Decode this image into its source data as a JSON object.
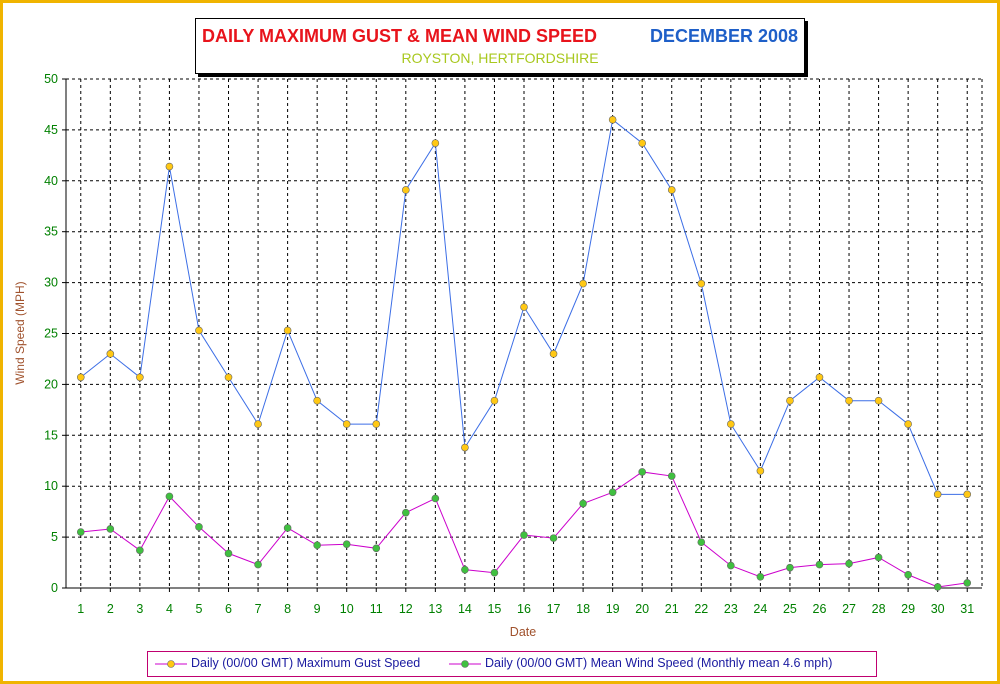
{
  "title": {
    "main": "DAILY MAXIMUM GUST & MEAN WIND SPEED",
    "date": "DECEMBER 2008",
    "subtitle": "ROYSTON, HERTFORDSHIRE"
  },
  "colors": {
    "title_main": "#e8141c",
    "title_date": "#1e5fc8",
    "subtitle": "#a8c81e",
    "axis_text": "#008000",
    "axis_label": "#a0522d",
    "gust_line": "#3c6ee6",
    "gust_marker": "#ffc814",
    "mean_line": "#cc00cc",
    "mean_marker": "#40c040",
    "frame": "#f0b400"
  },
  "chart_data": {
    "type": "line",
    "title": "DAILY MAXIMUM GUST & MEAN WIND SPEED",
    "xlabel": "Date",
    "ylabel": "Wind Speed (MPH)",
    "ylim": [
      0,
      50
    ],
    "yticks": [
      0,
      5,
      10,
      15,
      20,
      25,
      30,
      35,
      40,
      45,
      50
    ],
    "grid": true,
    "legend_position": "bottom",
    "categories": [
      "1",
      "2",
      "3",
      "4",
      "5",
      "6",
      "7",
      "8",
      "9",
      "10",
      "11",
      "12",
      "13",
      "14",
      "15",
      "16",
      "17",
      "18",
      "19",
      "20",
      "21",
      "22",
      "23",
      "24",
      "25",
      "26",
      "27",
      "28",
      "29",
      "30",
      "31"
    ],
    "series": [
      {
        "name": "Daily (00/00 GMT) Maximum Gust Speed",
        "values": [
          20.7,
          23.0,
          20.7,
          41.4,
          25.3,
          20.7,
          16.1,
          25.3,
          18.4,
          16.1,
          16.1,
          39.1,
          43.7,
          13.8,
          18.4,
          27.6,
          23.0,
          29.9,
          46.0,
          43.7,
          39.1,
          29.9,
          16.1,
          11.5,
          18.4,
          20.7,
          18.4,
          18.4,
          16.1,
          9.2,
          9.2
        ]
      },
      {
        "name": "Daily (00/00 GMT) Mean Wind Speed (Monthly mean 4.6 mph)",
        "values": [
          5.5,
          5.8,
          3.7,
          9.0,
          6.0,
          3.4,
          2.3,
          5.9,
          4.2,
          4.3,
          3.9,
          7.4,
          8.8,
          1.8,
          1.5,
          5.2,
          4.9,
          8.3,
          9.4,
          11.4,
          11.0,
          4.5,
          2.2,
          1.1,
          2.0,
          2.3,
          2.4,
          3.0,
          1.3,
          0.1,
          0.5
        ]
      }
    ]
  }
}
